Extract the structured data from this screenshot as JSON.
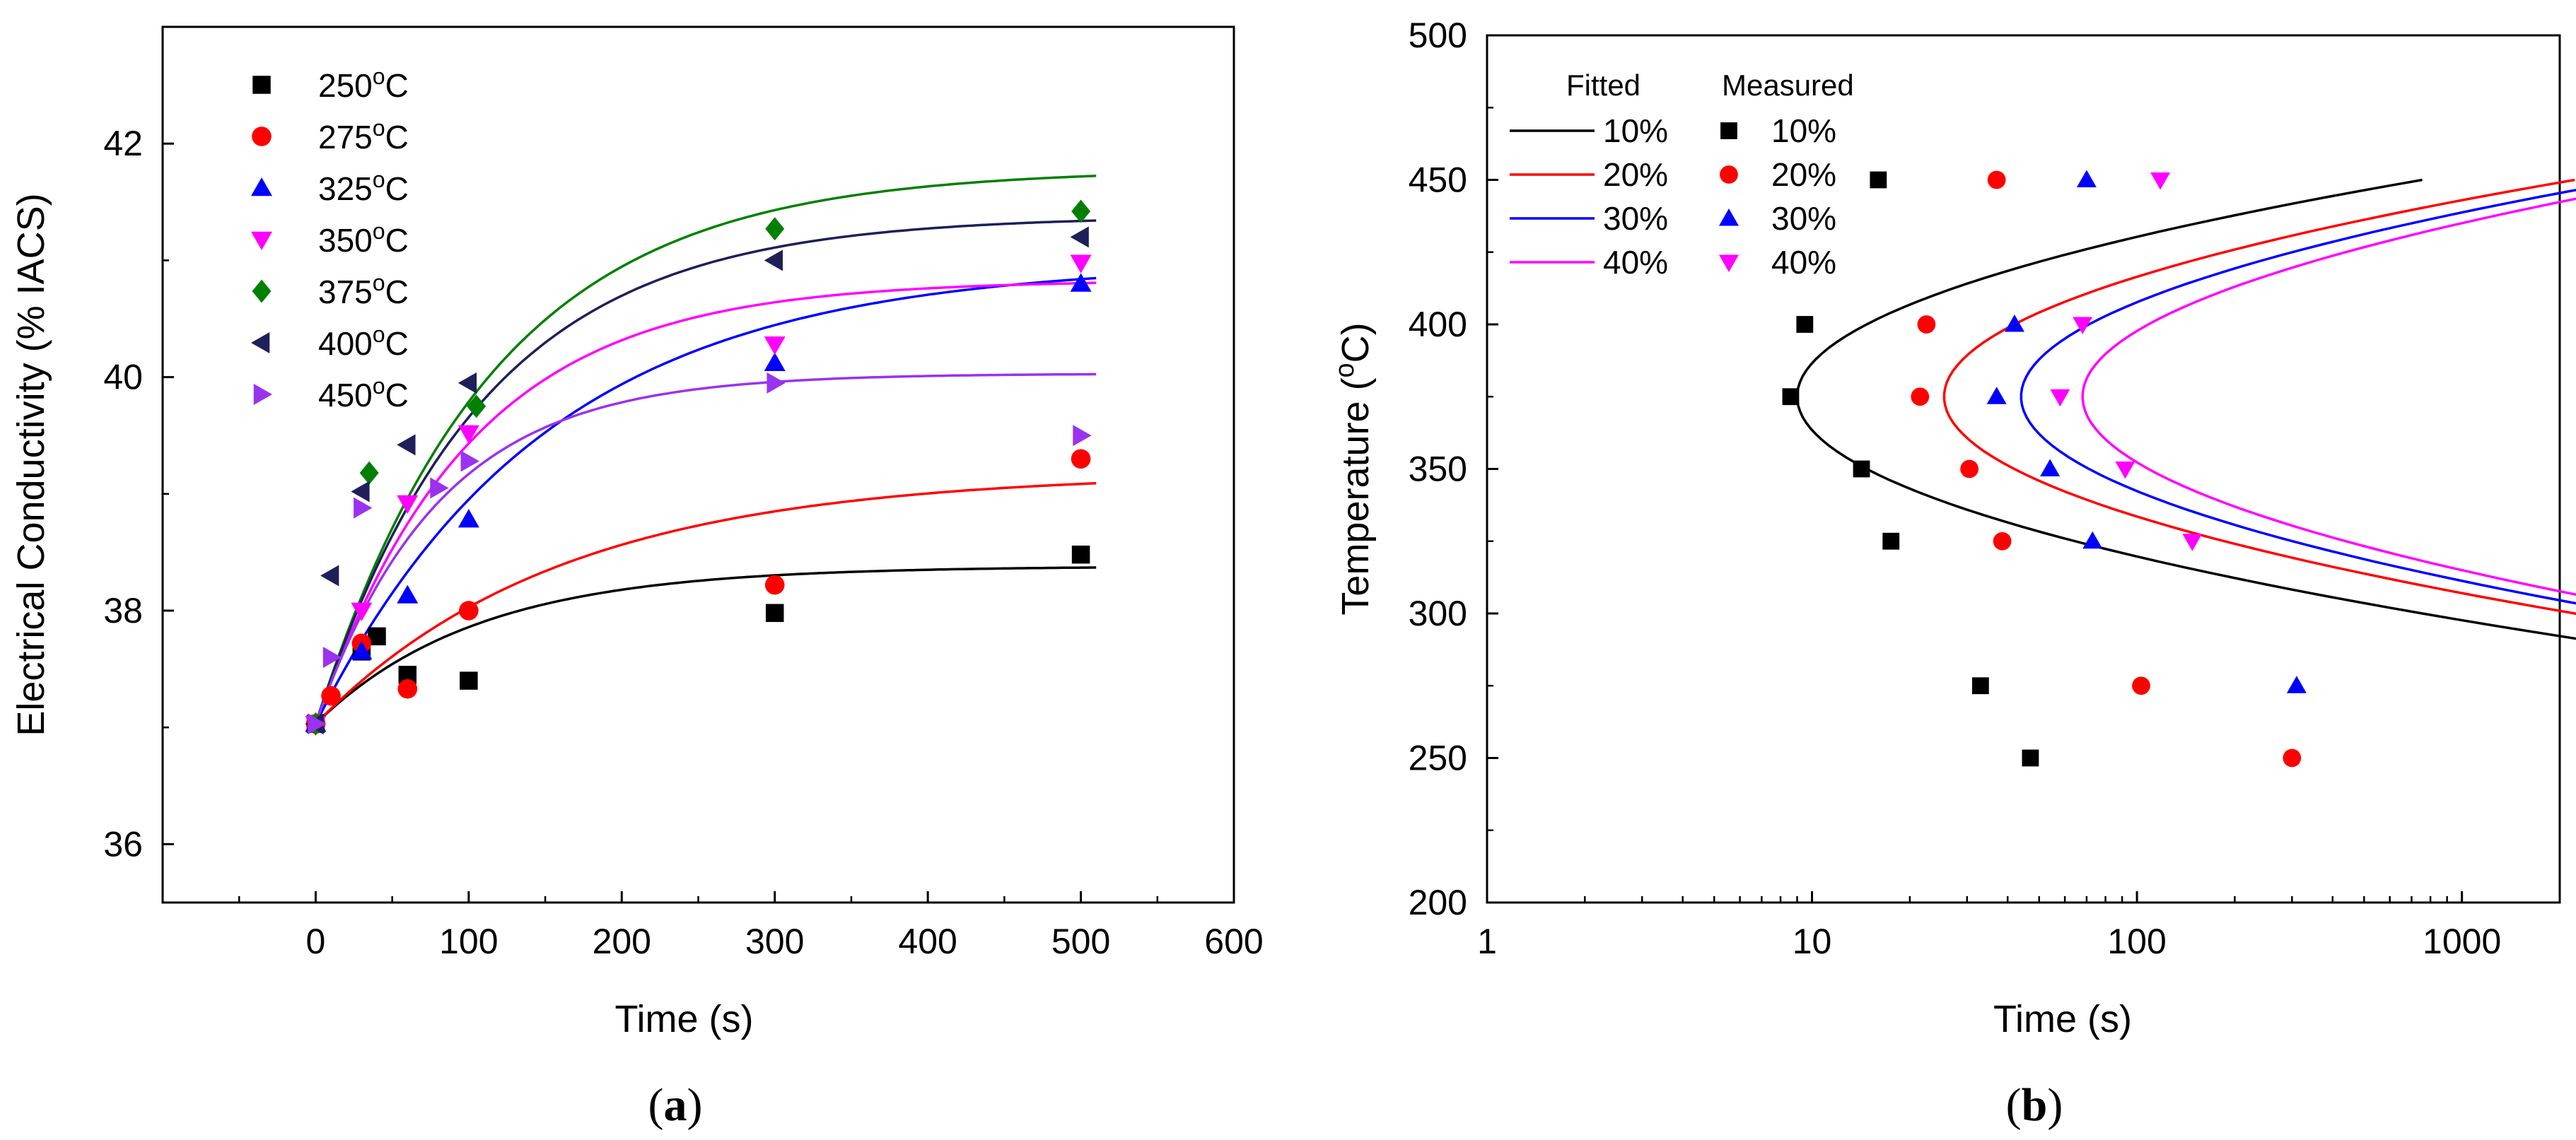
{
  "chart_data": [
    {
      "id": "a",
      "type": "scatter",
      "caption_letter": "a",
      "xlabel": "Time (s)",
      "ylabel": "Electrical Conductivity (% IACS)",
      "xlim": [
        -100,
        600
      ],
      "ylim": [
        35.5,
        43
      ],
      "xticks": [
        0,
        100,
        200,
        300,
        400,
        500,
        600
      ],
      "yticks": [
        36,
        38,
        40,
        42
      ],
      "legend_placement": "top-left",
      "series": [
        {
          "name": "250°C",
          "label": "250",
          "unit": "oC",
          "color": "#000000",
          "marker": "square",
          "x": [
            0,
            30,
            40,
            60,
            100,
            300,
            500
          ],
          "y": [
            37.03,
            37.65,
            37.78,
            37.45,
            37.4,
            37.98,
            38.48
          ],
          "fit": {
            "y0": 37.03,
            "A": 1.35,
            "tau": 105
          }
        },
        {
          "name": "275°C",
          "label": "275",
          "unit": "oC",
          "color": "#ff0000",
          "marker": "circle",
          "x": [
            0,
            10,
            30,
            60,
            100,
            300,
            500
          ],
          "y": [
            37.03,
            37.27,
            37.72,
            37.33,
            38.0,
            38.22,
            39.3
          ],
          "fit": {
            "y0": 37.03,
            "A": 2.15,
            "tau": 160
          }
        },
        {
          "name": "325°C",
          "label": "325",
          "unit": "oC",
          "color": "#0000ff",
          "marker": "triangle-up",
          "x": [
            0,
            30,
            60,
            100,
            300,
            500
          ],
          "y": [
            37.03,
            37.65,
            38.13,
            38.78,
            40.12,
            40.8
          ],
          "fit": {
            "y0": 37.03,
            "A": 3.95,
            "tau": 150
          }
        },
        {
          "name": "350°C",
          "label": "350",
          "unit": "oC",
          "color": "#ff00ff",
          "marker": "triangle-down",
          "x": [
            0,
            30,
            60,
            100,
            300,
            500
          ],
          "y": [
            37.03,
            38.0,
            38.92,
            39.52,
            40.28,
            40.98
          ],
          "fit": {
            "y0": 37.03,
            "A": 3.8,
            "tau": 100
          }
        },
        {
          "name": "375°C",
          "label": "375",
          "unit": "oC",
          "color": "#008000",
          "marker": "diamond",
          "x": [
            0,
            35,
            105,
            300,
            500
          ],
          "y": [
            37.03,
            39.18,
            39.75,
            41.27,
            41.42
          ],
          "fit": {
            "y0": 37.03,
            "A": 4.75,
            "tau": 115
          }
        },
        {
          "name": "400°C",
          "label": "400",
          "unit": "oC",
          "color": "#1f1f5a",
          "marker": "triangle-left",
          "x": [
            0,
            10,
            30,
            60,
            100,
            300,
            500
          ],
          "y": [
            37.03,
            38.3,
            39.02,
            39.42,
            39.95,
            41.0,
            41.2
          ],
          "fit": {
            "y0": 37.03,
            "A": 4.35,
            "tau": 108
          }
        },
        {
          "name": "450°C",
          "label": "450",
          "unit": "oC",
          "color": "#9933ee",
          "marker": "triangle-right",
          "x": [
            0,
            10,
            30,
            80,
            100,
            300,
            500
          ],
          "y": [
            37.03,
            37.6,
            38.88,
            39.05,
            39.28,
            39.95,
            39.5
          ],
          "fit": {
            "y0": 37.03,
            "A": 3.0,
            "tau": 80
          }
        }
      ]
    },
    {
      "id": "b",
      "type": "scatter",
      "caption_letter": "b",
      "xlabel": "Time (s)",
      "ylabel": "Temperature (oC)",
      "xscale": "log",
      "xlim": [
        1,
        2000
      ],
      "ylim": [
        200,
        500
      ],
      "xticks": [
        1,
        10,
        100,
        1000
      ],
      "xtick_labels": [
        "1",
        "10",
        "100",
        "1000"
      ],
      "yticks": [
        200,
        250,
        300,
        350,
        400,
        450,
        500
      ],
      "legend_placement": "top-left",
      "legend_headers": {
        "fitted": "Fitted",
        "measured": "Measured"
      },
      "series": [
        {
          "name": "10%",
          "color": "#000000",
          "marker": "square",
          "measured": {
            "t": [
              16,
              9.5,
              8.6,
              14.2,
              17.5,
              33,
              47
            ],
            "T": [
              450,
              400,
              375,
              350,
              325,
              275,
              250
            ]
          },
          "fit": {
            "Tn": 375,
            "tn": 9.0,
            "k": 0.000342
          }
        },
        {
          "name": "20%",
          "color": "#ff0000",
          "marker": "circle",
          "measured": {
            "t": [
              37,
              22.5,
              21.5,
              30.5,
              38.5,
              103,
              300
            ],
            "T": [
              450,
              400,
              375,
              350,
              325,
              275,
              250
            ]
          },
          "fit": {
            "Tn": 375,
            "tn": 25.5,
            "k": 0.000345
          }
        },
        {
          "name": "30%",
          "color": "#0000ff",
          "marker": "triangle-up",
          "measured": {
            "t": [
              70,
              42,
              37,
              54,
              73,
              310
            ],
            "T": [
              450,
              400,
              375,
              350,
              325,
              275
            ]
          },
          "fit": {
            "Tn": 375,
            "tn": 44,
            "k": 0.000334
          }
        },
        {
          "name": "40%",
          "color": "#ff00ff",
          "marker": "triangle-down",
          "measured": {
            "t": [
              118,
              68,
              58,
              92,
              148
            ],
            "T": [
              450,
              400,
              375,
              350,
              325
            ]
          },
          "fit": {
            "Tn": 375,
            "tn": 68,
            "k": 0.000324
          }
        }
      ]
    }
  ]
}
